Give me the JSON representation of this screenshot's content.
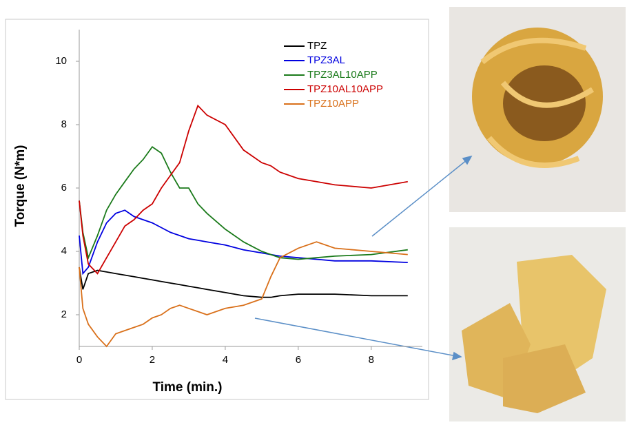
{
  "chart_data": {
    "type": "line",
    "x_label": "Time (min.)",
    "y_label": "Torque (N*m)",
    "x": [
      0,
      0.1,
      0.25,
      0.5,
      0.75,
      1,
      1.25,
      1.5,
      1.75,
      2,
      2.25,
      2.5,
      2.75,
      3,
      3.25,
      3.5,
      4,
      4.5,
      5,
      5.25,
      5.5,
      6,
      6.5,
      7,
      8,
      9
    ],
    "series": [
      {
        "name": "TPZ",
        "color": "#000000",
        "values": [
          3.5,
          2.8,
          3.3,
          3.4,
          3.35,
          3.3,
          3.25,
          3.2,
          3.15,
          3.1,
          3.05,
          3.0,
          2.95,
          2.9,
          2.85,
          2.8,
          2.7,
          2.6,
          2.55,
          2.55,
          2.6,
          2.65,
          2.65,
          2.65,
          2.6,
          2.6
        ]
      },
      {
        "name": "TPZ3AL",
        "color": "#0000e0",
        "values": [
          4.5,
          3.3,
          3.5,
          4.3,
          4.9,
          5.2,
          5.3,
          5.1,
          5.0,
          4.9,
          4.75,
          4.6,
          4.5,
          4.4,
          4.35,
          4.3,
          4.2,
          4.05,
          3.95,
          3.9,
          3.85,
          3.8,
          3.75,
          3.7,
          3.7,
          3.65
        ]
      },
      {
        "name": "TPZ3AL10APP",
        "color": "#1a7a1a",
        "values": [
          5.6,
          4.6,
          3.8,
          4.5,
          5.3,
          5.8,
          6.2,
          6.6,
          6.9,
          7.3,
          7.1,
          6.5,
          6.0,
          6.0,
          5.5,
          5.2,
          4.7,
          4.3,
          4.0,
          3.9,
          3.8,
          3.75,
          3.8,
          3.85,
          3.9,
          4.05
        ]
      },
      {
        "name": "TPZ10AL10APP",
        "color": "#cc0000",
        "values": [
          5.6,
          4.5,
          3.6,
          3.3,
          3.8,
          4.3,
          4.8,
          5.0,
          5.3,
          5.5,
          6.0,
          6.4,
          6.8,
          7.8,
          8.6,
          8.3,
          8.0,
          7.2,
          6.8,
          6.7,
          6.5,
          6.3,
          6.2,
          6.1,
          6.0,
          6.2
        ]
      },
      {
        "name": "TPZ10APP",
        "color": "#d9701a",
        "values": [
          3.5,
          2.2,
          1.7,
          1.3,
          1.0,
          1.4,
          1.5,
          1.6,
          1.7,
          1.9,
          2.0,
          2.2,
          2.3,
          2.2,
          2.1,
          2.0,
          2.2,
          2.3,
          2.5,
          3.2,
          3.8,
          4.1,
          4.3,
          4.1,
          4.0,
          3.9
        ]
      }
    ],
    "xlim": [
      0,
      9.4
    ],
    "ylim": [
      1,
      11
    ],
    "xticks": [
      0,
      2,
      4,
      6,
      8
    ],
    "yticks": [
      2,
      4,
      6,
      8,
      10
    ],
    "legend": "upper-right"
  }
}
